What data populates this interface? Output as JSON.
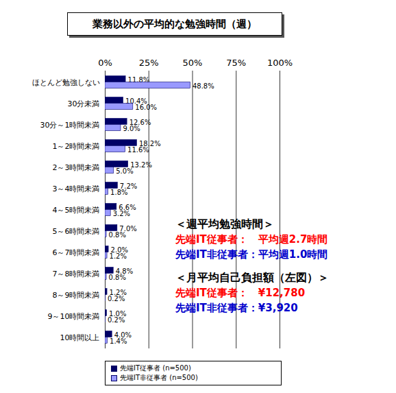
{
  "chart_data": {
    "type": "bar",
    "orientation": "horizontal",
    "title": "業務以外の平均的な勉強時間（週）",
    "categories": [
      "ほとんど勉強しない",
      "30分未満",
      "30分～1時間未満",
      "1～2時間未満",
      "2～3時間未満",
      "3～4時間未満",
      "4～5時間未満",
      "5～6時間未満",
      "6～7時間未満",
      "7～8時間未満",
      "8～9時間未満",
      "9～10時間未満",
      "10時間以上"
    ],
    "series": [
      {
        "name": "先端IT従事者 (n=500)",
        "color": "#000066",
        "values": [
          11.8,
          10.4,
          12.6,
          18.2,
          13.2,
          7.2,
          6.6,
          7.0,
          2.0,
          4.8,
          1.2,
          1.0,
          4.0
        ],
        "value_labels": [
          "11.8%",
          "10.4%",
          "12.6%",
          "18.2%",
          "13.2%",
          "7.2%",
          "6.6%",
          "7.0%",
          "2.0%",
          "4.8%",
          "1.2%",
          "1.0%",
          "4.0%"
        ]
      },
      {
        "name": "先端IT非従事者 (n=500)",
        "color": "#9999ff",
        "values": [
          48.8,
          16.0,
          9.0,
          11.6,
          5.0,
          1.8,
          3.2,
          0.8,
          1.2,
          0.8,
          0.2,
          0.2,
          1.4
        ],
        "value_labels": [
          "48.8%",
          "16.0%",
          "9.0%",
          "11.6%",
          "5.0%",
          "1.8%",
          "3.2%",
          "0.8%",
          "1.2%",
          "0.8%",
          "0.2%",
          "0.2%",
          "1.4%"
        ]
      }
    ],
    "xlim": [
      0,
      100
    ],
    "xticks": [
      {
        "value": 0,
        "label": "0%"
      },
      {
        "value": 25,
        "label": "25%"
      },
      {
        "value": 50,
        "label": "50%"
      },
      {
        "value": 75,
        "label": "75%"
      },
      {
        "value": 100,
        "label": "100%"
      }
    ],
    "grid": true,
    "data_labels": true,
    "legend": "bottom",
    "annotations": [
      {
        "heading": {
          "text": "＜週平均勉強時間＞",
          "color": "#000000"
        },
        "lines": [
          {
            "text": "先端IT従事者：　平均週2.7時間",
            "color": "#ff0000"
          },
          {
            "text": "先端IT非従事者：平均週1.0時間",
            "color": "#0000cc"
          }
        ]
      },
      {
        "heading": {
          "text": "＜月平均自己負担額（左図）＞",
          "color": "#000000"
        },
        "lines": [
          {
            "text": "先端IT従事者：　¥12,780",
            "color": "#ff0000"
          },
          {
            "text": "先端IT非従事者：¥3,920",
            "color": "#0000cc"
          }
        ]
      }
    ]
  }
}
